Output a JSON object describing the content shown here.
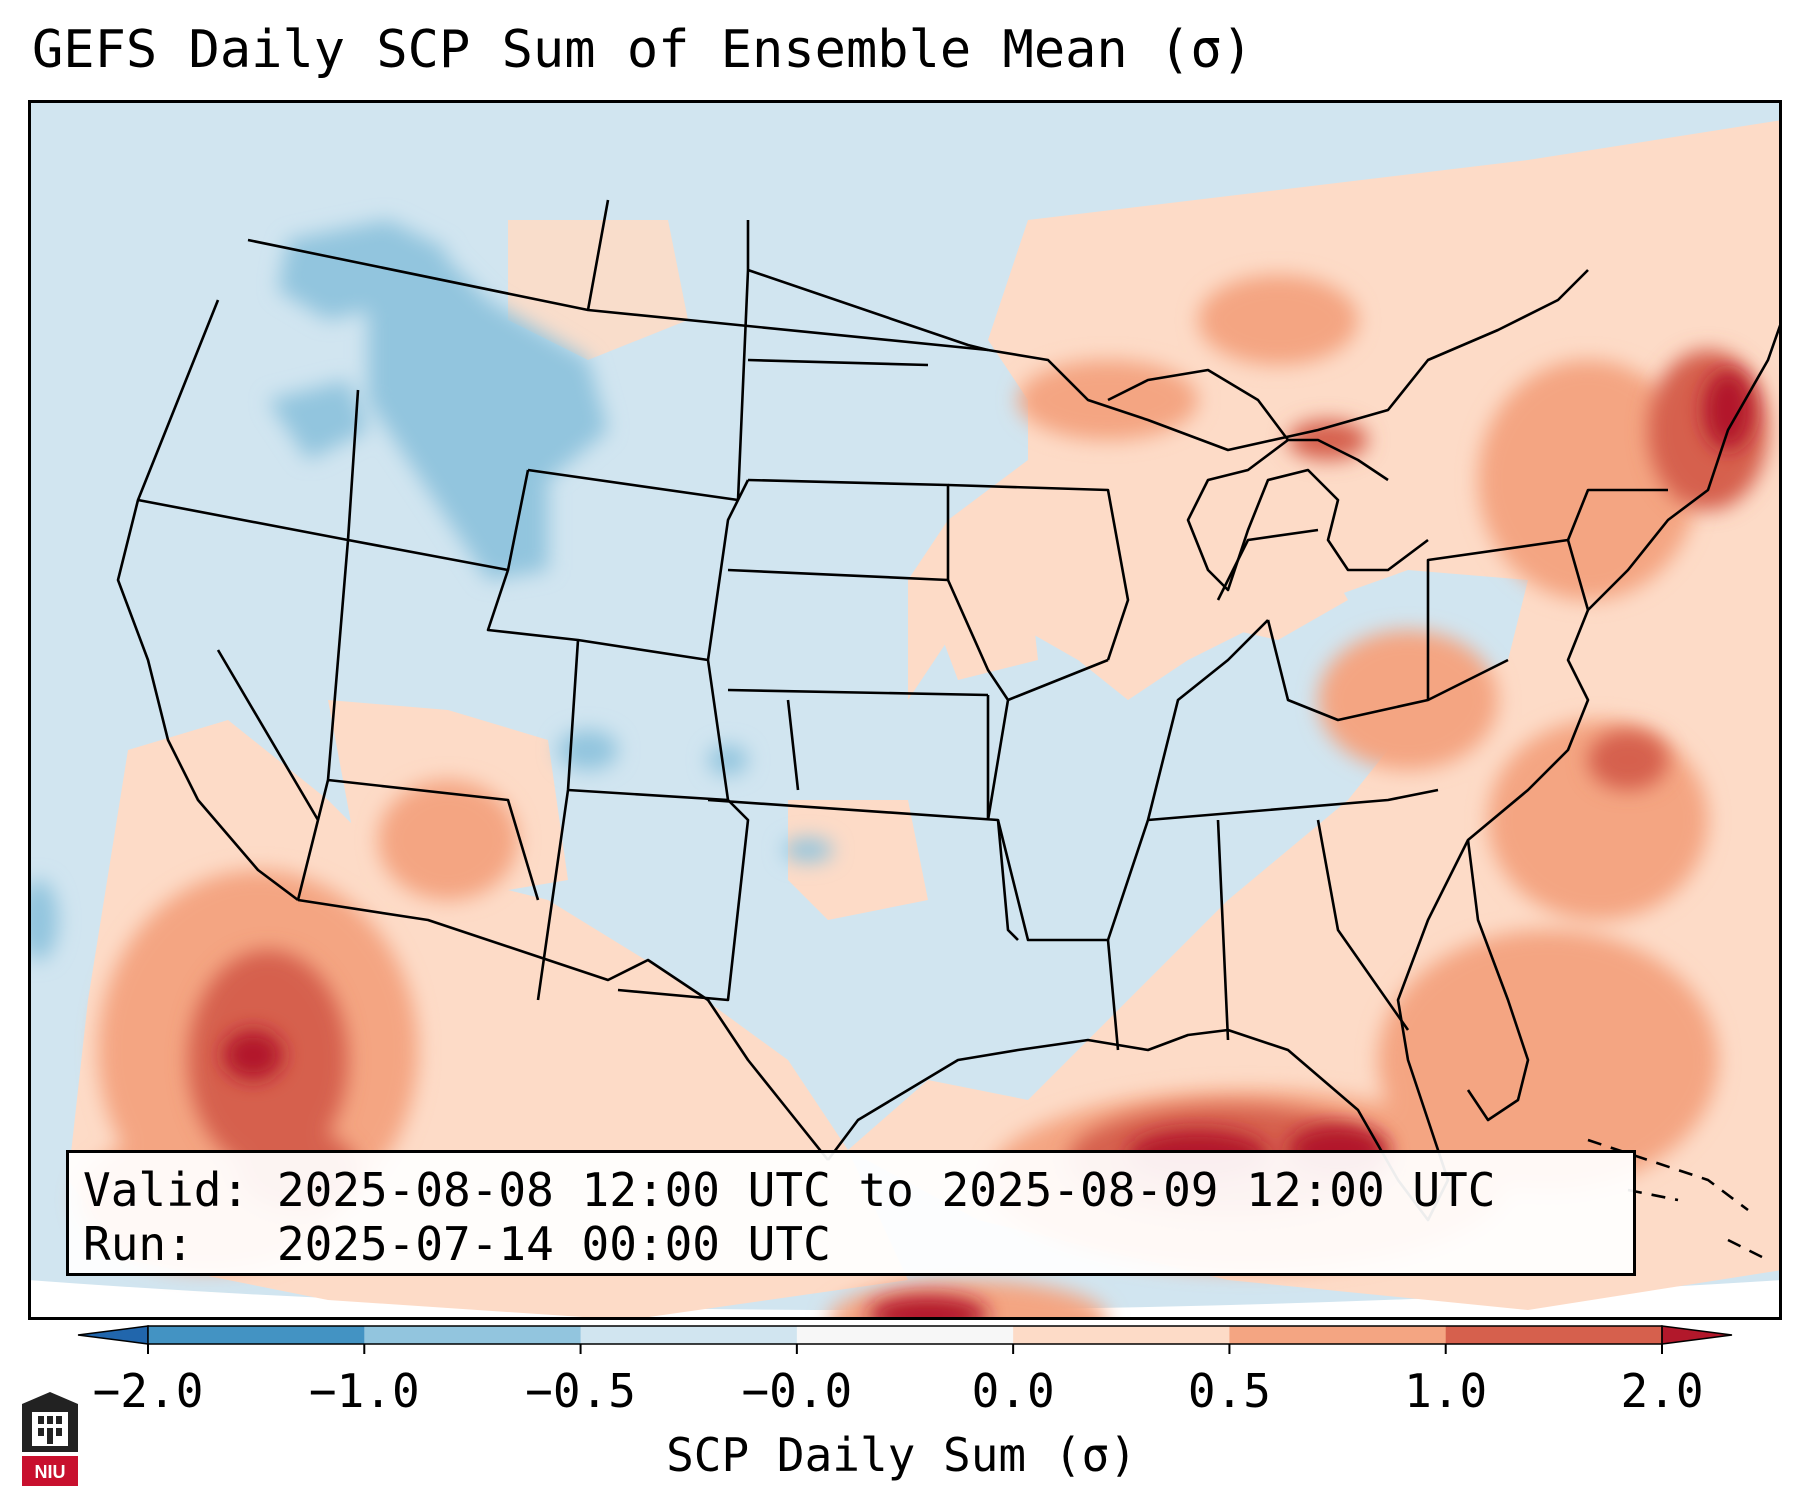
{
  "title": "GEFS Daily SCP Sum of Ensemble Mean (σ)",
  "info": {
    "valid_label": "Valid:",
    "valid_value": "2025-08-08 12:00 UTC to 2025-08-09 12:00 UTC",
    "run_label": "Run:",
    "run_value": "2025-07-14 00:00 UTC"
  },
  "colorbar": {
    "label": "SCP Daily Sum (σ)",
    "ticks": [
      "−2.0",
      "−1.0",
      "−0.5",
      "−0.0",
      "0.0",
      "0.5",
      "1.0",
      "2.0"
    ],
    "colors": [
      "#4393c3",
      "#92c5de",
      "#d1e5f0",
      "#f7f7f7",
      "#fddbc7",
      "#f4a582",
      "#d6604d"
    ],
    "under_color": "#2166ac",
    "over_color": "#b2182b"
  },
  "palette": {
    "strong_neg": "#2166ac",
    "neg": "#92c5de",
    "weak_neg": "#d1e5f0",
    "weak_pos": "#fddbc7",
    "pos": "#f4a582",
    "strong_pos": "#d6604d",
    "extreme_pos": "#b2182b"
  },
  "logo": {
    "text": "NIU",
    "color": "#c8102e"
  }
}
